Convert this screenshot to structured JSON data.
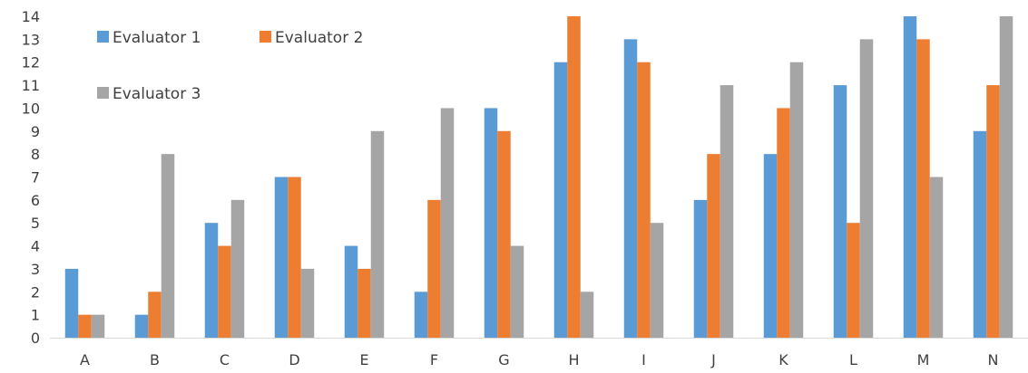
{
  "chart_data": {
    "type": "bar",
    "title": "",
    "xlabel": "",
    "ylabel": "",
    "ylim": [
      0,
      14
    ],
    "yticks": [
      0,
      1,
      2,
      3,
      4,
      5,
      6,
      7,
      8,
      9,
      10,
      11,
      12,
      13,
      14
    ],
    "grid": false,
    "legend_position": "top-left",
    "categories": [
      "A",
      "B",
      "C",
      "D",
      "E",
      "F",
      "G",
      "H",
      "I",
      "J",
      "K",
      "L",
      "M",
      "N"
    ],
    "series": [
      {
        "name": "Evaluator 1",
        "color": "#5b9bd5",
        "values": [
          3,
          1,
          5,
          7,
          4,
          2,
          10,
          12,
          13,
          6,
          8,
          11,
          14,
          9
        ]
      },
      {
        "name": "Evaluator 2",
        "color": "#ed7d31",
        "values": [
          1,
          2,
          4,
          7,
          3,
          6,
          9,
          14,
          12,
          8,
          10,
          5,
          13,
          11
        ]
      },
      {
        "name": "Evaluator 3",
        "color": "#a5a5a5",
        "values": [
          1,
          8,
          6,
          3,
          9,
          10,
          4,
          2,
          5,
          11,
          12,
          13,
          7,
          14
        ]
      }
    ]
  }
}
